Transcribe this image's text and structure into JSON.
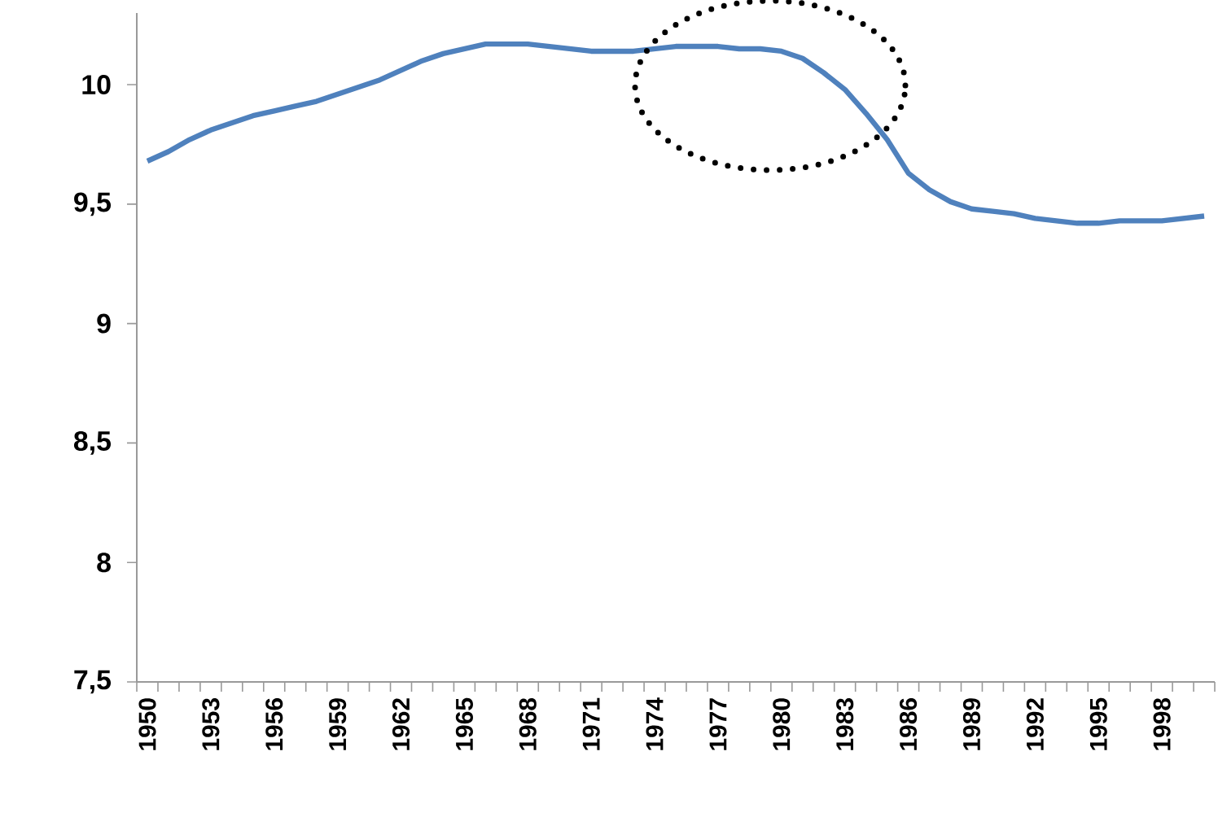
{
  "chart_data": {
    "type": "line",
    "categories": [
      "1950",
      null,
      null,
      "1953",
      null,
      null,
      "1956",
      null,
      null,
      "1959",
      null,
      null,
      "1962",
      null,
      null,
      "1965",
      null,
      null,
      "1968",
      null,
      null,
      "1971",
      null,
      null,
      "1974",
      null,
      null,
      "1977",
      null,
      null,
      "1980",
      null,
      null,
      "1983",
      null,
      null,
      "1986",
      null,
      null,
      "1989",
      null,
      null,
      "1992",
      null,
      null,
      "1995",
      null,
      null,
      "1998",
      null,
      null
    ],
    "series": [
      {
        "color": "#4f81bd",
        "values": [
          9.68,
          9.72,
          9.77,
          9.81,
          9.84,
          9.87,
          9.89,
          9.91,
          9.93,
          9.96,
          9.99,
          10.02,
          10.06,
          10.1,
          10.13,
          10.15,
          10.17,
          10.17,
          10.17,
          10.16,
          10.15,
          10.14,
          10.14,
          10.14,
          10.15,
          10.16,
          10.16,
          10.16,
          10.15,
          10.15,
          10.14,
          10.11,
          10.05,
          9.98,
          9.88,
          9.77,
          9.63,
          9.56,
          9.51,
          9.48,
          9.47,
          9.46,
          9.44,
          9.43,
          9.42,
          9.42,
          9.43,
          9.43,
          9.43,
          9.44,
          9.45
        ]
      }
    ],
    "ylim": [
      7.5,
      10.3
    ],
    "yticks": [
      {
        "value": 7.5,
        "label": "7,5"
      },
      8,
      {
        "value": 8.5,
        "label": "8,5"
      },
      9,
      {
        "value": 9.5,
        "label": "9,5"
      },
      10
    ]
  }
}
